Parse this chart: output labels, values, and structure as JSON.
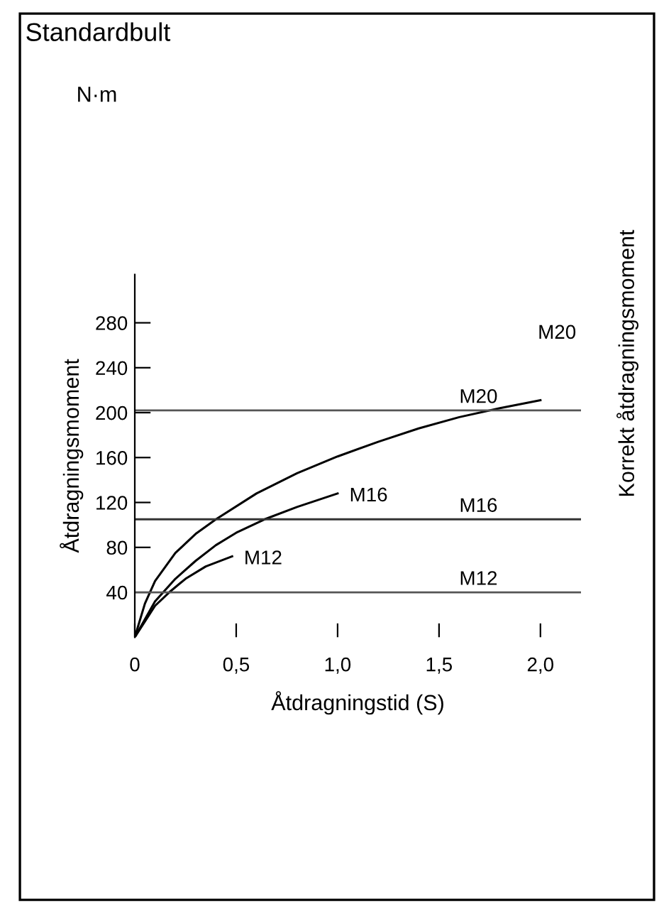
{
  "chart_data": {
    "type": "line",
    "title": "Standardbult",
    "subtitle": "N·m",
    "xlabel": "Åtdragningstid (S)",
    "ylabel": "Åtdragningsmoment",
    "y2label": "Korrekt åtdragningsmoment",
    "series": [
      {
        "color": "#000000",
        "x": [
          0,
          0.05,
          0.1,
          0.2,
          0.3,
          0.4,
          0.6,
          0.8,
          1.0,
          1.2,
          1.4,
          1.6,
          1.8,
          2.0
        ],
        "values": [
          0,
          30,
          50,
          75,
          92,
          105,
          128,
          146,
          161,
          174,
          186,
          196,
          204,
          211
        ]
      },
      {
        "name": "M16",
        "color": "#000000",
        "x": [
          0,
          0.1,
          0.2,
          0.3,
          0.4,
          0.5,
          0.64,
          0.8,
          1.0
        ],
        "values": [
          0,
          32,
          52,
          68,
          82,
          93,
          105,
          116,
          128
        ]
      },
      {
        "name": "M12",
        "color": "#000000",
        "x": [
          0,
          0.1,
          0.17,
          0.25,
          0.35,
          0.48
        ],
        "values": [
          0,
          28,
          40,
          52,
          63,
          72
        ]
      }
    ],
    "ref_lines": [
      {
        "axis": "y",
        "value": 202,
        "label": "M20",
        "color": "#555555"
      },
      {
        "axis": "y",
        "value": 105,
        "label": "M16",
        "color": "#333333"
      },
      {
        "axis": "y",
        "value": 40,
        "label": "M12",
        "color": "#555555"
      }
    ],
    "annotations": [
      "M20"
    ],
    "xlim": [
      0,
      2.2
    ],
    "ylim": [
      0,
      323
    ],
    "xticks": [
      {
        "value": 0,
        "label": "0"
      },
      {
        "value": 0.5,
        "label": "0,5"
      },
      {
        "value": 1.0,
        "label": "1,0"
      },
      {
        "value": 1.5,
        "label": "1,5"
      },
      {
        "value": 2.0,
        "label": "2,0"
      }
    ],
    "yticks": [
      40,
      80,
      120,
      160,
      200,
      240,
      280
    ],
    "grid": false,
    "legend": false,
    "marker": "none",
    "line_style": "solid"
  }
}
